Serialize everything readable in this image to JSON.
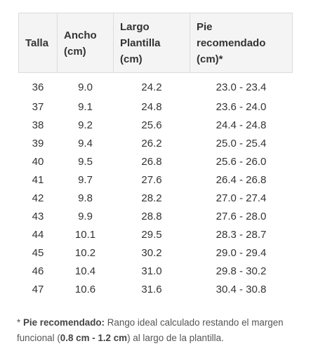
{
  "table": {
    "headers": {
      "talla": "Talla",
      "ancho_1": "Ancho",
      "ancho_2": "(cm)",
      "largo_1": "Largo",
      "largo_2": "Plantilla",
      "largo_3": "(cm)",
      "pie_1": "Pie",
      "pie_2": "recomendado",
      "pie_3": "(cm)*"
    },
    "rows": [
      {
        "talla": "36",
        "ancho": "9.0",
        "largo": "24.2",
        "pie": "23.0 - 23.4"
      },
      {
        "talla": "37",
        "ancho": "9.1",
        "largo": "24.8",
        "pie": "23.6 - 24.0"
      },
      {
        "talla": "38",
        "ancho": "9.2",
        "largo": "25.6",
        "pie": "24.4 - 24.8"
      },
      {
        "talla": "39",
        "ancho": "9.4",
        "largo": "26.2",
        "pie": "25.0 - 25.4"
      },
      {
        "talla": "40",
        "ancho": "9.5",
        "largo": "26.8",
        "pie": "25.6 - 26.0"
      },
      {
        "talla": "41",
        "ancho": "9.7",
        "largo": "27.6",
        "pie": "26.4 - 26.8"
      },
      {
        "talla": "42",
        "ancho": "9.8",
        "largo": "28.2",
        "pie": "27.0 - 27.4"
      },
      {
        "talla": "43",
        "ancho": "9.9",
        "largo": "28.8",
        "pie": "27.6 - 28.0"
      },
      {
        "talla": "44",
        "ancho": "10.1",
        "largo": "29.5",
        "pie": "28.3 - 28.7"
      },
      {
        "talla": "45",
        "ancho": "10.2",
        "largo": "30.2",
        "pie": "29.0 - 29.4"
      },
      {
        "talla": "46",
        "ancho": "10.4",
        "largo": "31.0",
        "pie": "29.8 - 30.2"
      },
      {
        "talla": "47",
        "ancho": "10.6",
        "largo": "31.6",
        "pie": "30.4 - 30.8"
      }
    ]
  },
  "note": {
    "prefix": "* ",
    "term": "Pie recomendado:",
    "text_1": " Rango ideal calculado restando el margen funcional (",
    "margin": "0.8 cm - 1.2 cm",
    "text_2": ") al largo de la plantilla."
  },
  "colors": {
    "header_bg": "#f4f4f4",
    "border": "#dcdcdc",
    "text": "#333333",
    "note_text": "#555555"
  }
}
